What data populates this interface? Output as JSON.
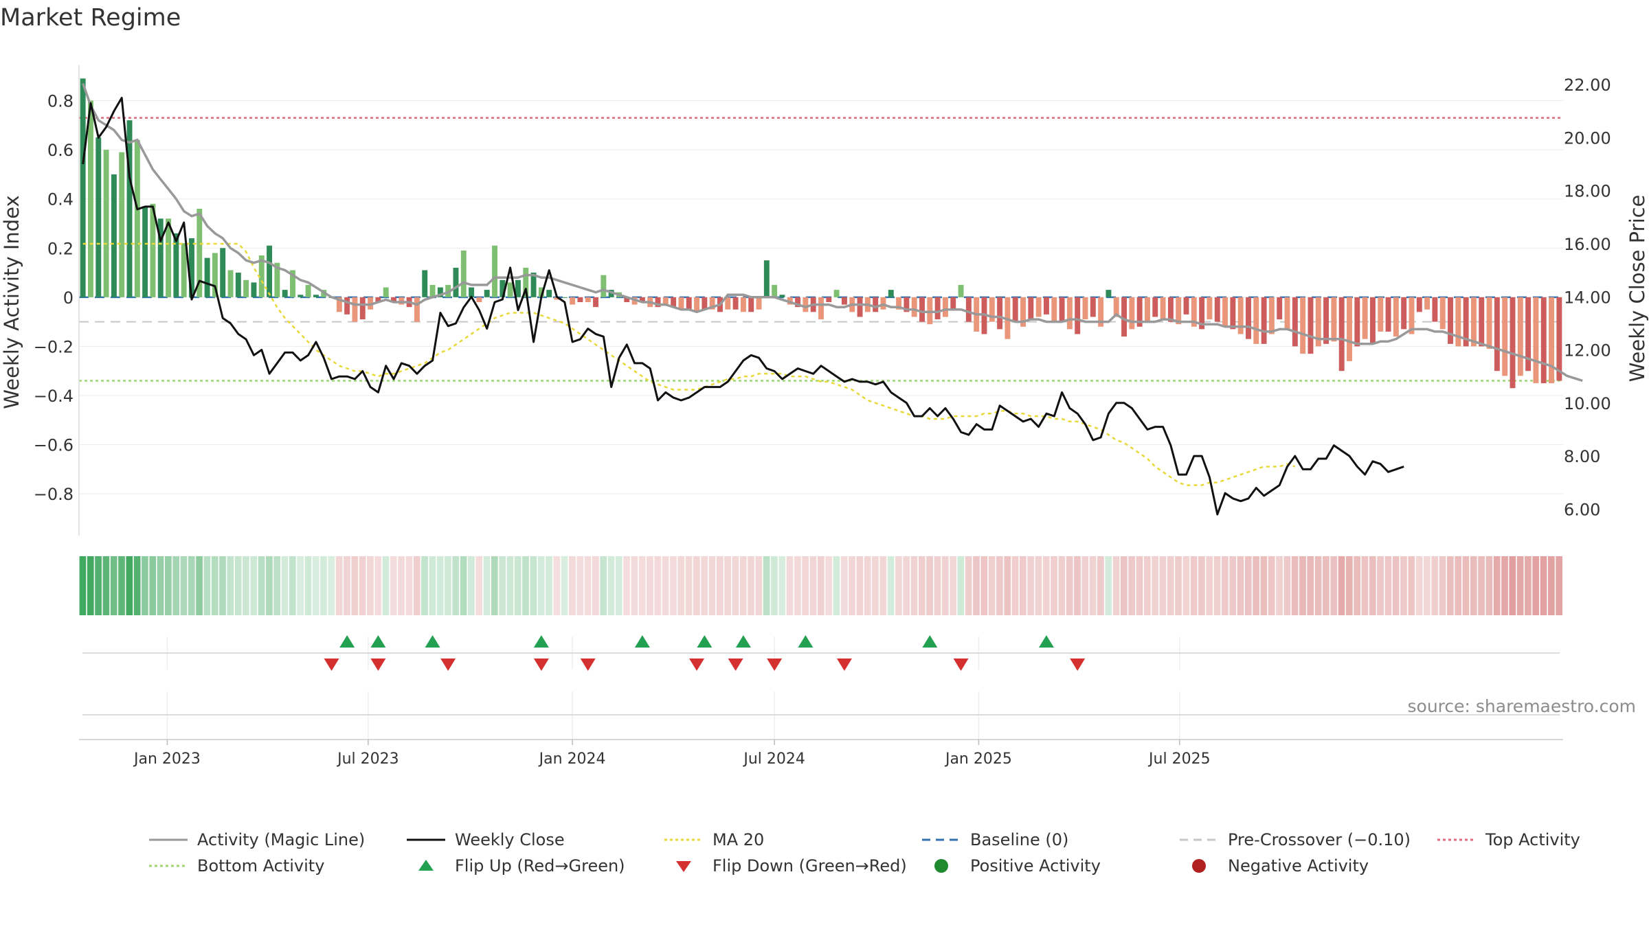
{
  "title": "Market Regime",
  "source": "source: sharemaestro.com",
  "legend": [
    {
      "label": "Activity (Magic Line)",
      "kind": "line",
      "color": "#999999",
      "dash": ""
    },
    {
      "label": "Weekly Close",
      "kind": "line",
      "color": "#111111",
      "dash": ""
    },
    {
      "label": "MA 20",
      "kind": "line",
      "color": "#e8d838",
      "dash": "4,4"
    },
    {
      "label": "Baseline (0)",
      "kind": "line",
      "color": "#2f72b0",
      "dash": "12,8"
    },
    {
      "label": "Pre-Crossover (−0.10)",
      "kind": "line",
      "color": "#c7c7c7",
      "dash": "12,8"
    },
    {
      "label": "Top Activity",
      "kind": "line",
      "color": "#e06a7a",
      "dash": "4,4"
    },
    {
      "label": "Bottom Activity",
      "kind": "line",
      "color": "#9ed86a",
      "dash": "4,4"
    },
    {
      "label": "Flip Up (Red→Green)",
      "kind": "tri-up",
      "color": "#23a052",
      "dash": ""
    },
    {
      "label": "Flip Down (Green→Red)",
      "kind": "tri-down",
      "color": "#d43030",
      "dash": ""
    },
    {
      "label": "Positive Activity",
      "kind": "dot",
      "color": "#208a30",
      "dash": ""
    },
    {
      "label": "Negative Activity",
      "kind": "dot",
      "color": "#b02020",
      "dash": ""
    }
  ],
  "chart_data": {
    "type": "bar",
    "x_start": "2022-10-17",
    "x_step_days": 7,
    "x_ticks": [
      "Jan 2023",
      "Jul 2023",
      "Jan 2024",
      "Jul 2024",
      "Jan 2025",
      "Jul 2025"
    ],
    "x_tick_dates": [
      "2023-01-01",
      "2023-07-01",
      "2024-01-01",
      "2024-07-01",
      "2025-01-01",
      "2025-07-01"
    ],
    "ylabel": "Weekly Activity Index",
    "ylabel_right": "Weekly Close Price",
    "ylim": [
      -0.97,
      0.93
    ],
    "ylim_right": [
      5.0,
      22.6
    ],
    "yticks": [
      "0.8",
      "0.6",
      "0.4",
      "0.2",
      "0",
      "−0.2",
      "−0.4",
      "−0.6",
      "−0.8"
    ],
    "ytick_values": [
      0.8,
      0.6,
      0.4,
      0.2,
      0,
      -0.2,
      -0.4,
      -0.6,
      -0.8
    ],
    "yticks_right": [
      "22.00",
      "20.00",
      "18.00",
      "16.00",
      "14.00",
      "12.00",
      "10.00",
      "8.00",
      "6.00"
    ],
    "ytick_values_right": [
      22,
      20,
      18,
      16,
      14,
      12,
      10,
      8,
      6
    ],
    "grid": true,
    "reference_lines": {
      "baseline": 0,
      "pre_crossover": -0.1,
      "top_activity": 0.73,
      "bottom_activity": -0.34
    },
    "activity_bars": [
      0.89,
      0.8,
      0.65,
      0.6,
      0.5,
      0.59,
      0.72,
      0.64,
      0.37,
      0.38,
      0.32,
      0.32,
      0.26,
      0.22,
      0.24,
      0.36,
      0.16,
      0.18,
      0.2,
      0.11,
      0.1,
      0.07,
      0.06,
      0.17,
      0.21,
      0.14,
      0.03,
      0.11,
      0.01,
      0.05,
      0.01,
      0.03,
      0.0,
      -0.06,
      -0.07,
      -0.1,
      -0.09,
      -0.05,
      -0.02,
      0.04,
      -0.02,
      -0.03,
      -0.04,
      -0.1,
      0.11,
      0.05,
      0.04,
      0.05,
      0.12,
      0.19,
      0.04,
      -0.02,
      0.03,
      0.21,
      0.07,
      0.06,
      0.07,
      0.12,
      0.1,
      0.04,
      0.03,
      -0.01,
      0.0,
      -0.03,
      -0.02,
      -0.02,
      -0.04,
      0.09,
      0.03,
      0.02,
      -0.02,
      -0.03,
      -0.02,
      -0.04,
      -0.04,
      -0.03,
      -0.04,
      -0.05,
      -0.05,
      -0.06,
      -0.05,
      -0.05,
      -0.06,
      -0.05,
      -0.05,
      -0.06,
      -0.06,
      -0.05,
      0.15,
      0.05,
      0.01,
      -0.03,
      -0.04,
      -0.06,
      -0.06,
      -0.09,
      -0.02,
      0.03,
      -0.03,
      -0.06,
      -0.08,
      -0.06,
      -0.06,
      -0.05,
      0.03,
      -0.05,
      -0.06,
      -0.08,
      -0.1,
      -0.11,
      -0.09,
      -0.08,
      -0.05,
      0.05,
      -0.1,
      -0.14,
      -0.15,
      -0.1,
      -0.13,
      -0.17,
      -0.1,
      -0.12,
      -0.09,
      -0.08,
      -0.07,
      -0.1,
      -0.1,
      -0.13,
      -0.15,
      -0.09,
      -0.08,
      -0.12,
      0.03,
      -0.08,
      -0.16,
      -0.13,
      -0.12,
      -0.1,
      -0.08,
      -0.09,
      -0.1,
      -0.11,
      -0.07,
      -0.12,
      -0.13,
      -0.09,
      -0.1,
      -0.12,
      -0.13,
      -0.15,
      -0.17,
      -0.19,
      -0.19,
      -0.15,
      -0.09,
      -0.13,
      -0.2,
      -0.23,
      -0.23,
      -0.2,
      -0.19,
      -0.18,
      -0.3,
      -0.26,
      -0.2,
      -0.17,
      -0.19,
      -0.14,
      -0.14,
      -0.16,
      -0.13,
      -0.15,
      -0.06,
      -0.05,
      -0.1,
      -0.13,
      -0.19,
      -0.2,
      -0.2,
      -0.2,
      -0.2,
      -0.21,
      -0.3,
      -0.32,
      -0.37,
      -0.32,
      -0.3,
      -0.35,
      -0.35,
      -0.35,
      -0.34
    ],
    "magic_line": [
      0.87,
      0.78,
      0.72,
      0.7,
      0.68,
      0.64,
      0.63,
      0.64,
      0.58,
      0.52,
      0.48,
      0.44,
      0.4,
      0.35,
      0.33,
      0.34,
      0.29,
      0.26,
      0.24,
      0.2,
      0.18,
      0.15,
      0.14,
      0.15,
      0.14,
      0.12,
      0.11,
      0.09,
      0.07,
      0.06,
      0.04,
      0.02,
      0.0,
      -0.01,
      -0.02,
      -0.03,
      -0.03,
      -0.03,
      -0.02,
      -0.01,
      -0.02,
      -0.02,
      -0.02,
      -0.03,
      -0.01,
      0.0,
      0.01,
      0.02,
      0.04,
      0.06,
      0.05,
      0.05,
      0.05,
      0.08,
      0.08,
      0.08,
      0.08,
      0.09,
      0.09,
      0.08,
      0.08,
      0.07,
      0.06,
      0.05,
      0.04,
      0.03,
      0.02,
      0.03,
      0.02,
      0.01,
      0.0,
      -0.01,
      -0.02,
      -0.02,
      -0.03,
      -0.03,
      -0.04,
      -0.05,
      -0.05,
      -0.06,
      -0.05,
      -0.04,
      -0.03,
      0.01,
      0.01,
      0.01,
      0.0,
      0.0,
      0.0,
      0.0,
      -0.01,
      -0.02,
      -0.03,
      -0.04,
      -0.03,
      -0.03,
      -0.03,
      -0.04,
      -0.04,
      -0.03,
      -0.03,
      -0.03,
      -0.04,
      -0.03,
      -0.04,
      -0.04,
      -0.05,
      -0.05,
      -0.06,
      -0.06,
      -0.06,
      -0.05,
      -0.05,
      -0.05,
      -0.06,
      -0.07,
      -0.07,
      -0.08,
      -0.08,
      -0.09,
      -0.1,
      -0.1,
      -0.09,
      -0.09,
      -0.1,
      -0.1,
      -0.1,
      -0.09,
      -0.09,
      -0.1,
      -0.1,
      -0.1,
      -0.1,
      -0.07,
      -0.09,
      -0.1,
      -0.1,
      -0.1,
      -0.1,
      -0.09,
      -0.09,
      -0.1,
      -0.1,
      -0.1,
      -0.11,
      -0.11,
      -0.11,
      -0.12,
      -0.12,
      -0.12,
      -0.12,
      -0.13,
      -0.14,
      -0.14,
      -0.13,
      -0.13,
      -0.14,
      -0.15,
      -0.16,
      -0.17,
      -0.17,
      -0.17,
      -0.17,
      -0.18,
      -0.19,
      -0.19,
      -0.19,
      -0.18,
      -0.18,
      -0.17,
      -0.15,
      -0.13,
      -0.13,
      -0.13,
      -0.14,
      -0.14,
      -0.15,
      -0.16,
      -0.17,
      -0.18,
      -0.19,
      -0.2,
      -0.21,
      -0.22,
      -0.23,
      -0.24,
      -0.25,
      -0.26,
      -0.27,
      -0.28,
      -0.3,
      -0.32,
      -0.33,
      -0.34
    ],
    "weekly_close": [
      19.0,
      21.3,
      20.0,
      20.4,
      21.0,
      21.5,
      18.5,
      17.3,
      17.4,
      17.4,
      16.1,
      16.8,
      16.1,
      16.8,
      13.9,
      14.6,
      14.5,
      14.4,
      13.2,
      13.0,
      12.6,
      12.4,
      11.8,
      12.0,
      11.1,
      11.5,
      11.9,
      11.9,
      11.6,
      11.8,
      12.3,
      11.7,
      10.9,
      11.0,
      11.0,
      10.9,
      11.2,
      10.6,
      10.4,
      11.4,
      10.9,
      11.5,
      11.4,
      11.1,
      11.4,
      11.6,
      13.4,
      12.9,
      13.0,
      13.6,
      14.0,
      13.5,
      12.8,
      13.8,
      13.9,
      15.1,
      13.5,
      14.3,
      12.3,
      14.0,
      15.0,
      14.0,
      13.8,
      12.3,
      12.4,
      12.8,
      12.6,
      12.5,
      10.6,
      11.7,
      12.2,
      11.5,
      11.5,
      11.3,
      10.1,
      10.4,
      10.2,
      10.1,
      10.2,
      10.4,
      10.6,
      10.6,
      10.6,
      10.8,
      11.2,
      11.6,
      11.8,
      11.7,
      11.3,
      11.2,
      10.9,
      11.1,
      11.3,
      11.2,
      11.1,
      11.4,
      11.2,
      11.0,
      10.8,
      10.9,
      10.8,
      10.8,
      10.7,
      10.8,
      10.4,
      10.2,
      10.0,
      9.5,
      9.5,
      9.8,
      9.5,
      9.8,
      9.4,
      8.9,
      8.8,
      9.2,
      9.0,
      9.0,
      9.9,
      9.7,
      9.5,
      9.3,
      9.4,
      9.1,
      9.6,
      9.5,
      10.4,
      9.8,
      9.6,
      9.2,
      8.6,
      8.7,
      9.6,
      10.0,
      10.0,
      9.8,
      9.4,
      9.0,
      9.1,
      9.1,
      8.4,
      7.3,
      7.3,
      8.0,
      8.0,
      7.2,
      5.8,
      6.6,
      6.4,
      6.3,
      6.4,
      6.8,
      6.5,
      6.7,
      6.9,
      7.6,
      8.0,
      7.5,
      7.5,
      7.9,
      7.9,
      8.4,
      8.2,
      8.0,
      7.6,
      7.3,
      7.8,
      7.7,
      7.4,
      7.5,
      7.6
    ],
    "ma20": [
      16.0,
      16.0,
      16.0,
      16.0,
      16.0,
      16.0,
      16.0,
      16.0,
      16.0,
      16.0,
      16.0,
      16.0,
      16.0,
      16.0,
      16.0,
      16.0,
      16.0,
      16.0,
      16.0,
      16.0,
      16.0,
      15.7,
      15.1,
      14.6,
      14.1,
      13.6,
      13.2,
      12.9,
      12.6,
      12.3,
      12.0,
      11.8,
      11.6,
      11.4,
      11.3,
      11.2,
      11.2,
      11.1,
      11.0,
      11.1,
      11.1,
      11.2,
      11.3,
      11.4,
      11.5,
      11.7,
      11.9,
      12.0,
      12.2,
      12.4,
      12.6,
      12.8,
      13.0,
      13.2,
      13.3,
      13.4,
      13.4,
      13.4,
      13.4,
      13.3,
      13.2,
      13.1,
      13.0,
      12.8,
      12.6,
      12.4,
      12.2,
      12.0,
      11.8,
      11.6,
      11.4,
      11.2,
      11.0,
      10.8,
      10.7,
      10.6,
      10.5,
      10.5,
      10.5,
      10.5,
      10.6,
      10.7,
      10.8,
      10.9,
      10.9,
      11.0,
      11.0,
      11.1,
      11.1,
      11.1,
      11.1,
      11.0,
      11.0,
      11.0,
      10.9,
      10.8,
      10.8,
      10.7,
      10.6,
      10.5,
      10.3,
      10.1,
      10.0,
      9.9,
      9.8,
      9.7,
      9.6,
      9.5,
      9.5,
      9.4,
      9.4,
      9.4,
      9.5,
      9.5,
      9.5,
      9.5,
      9.6,
      9.6,
      9.7,
      9.7,
      9.6,
      9.6,
      9.5,
      9.5,
      9.5,
      9.4,
      9.4,
      9.3,
      9.3,
      9.2,
      9.1,
      9.0,
      8.8,
      8.6,
      8.5,
      8.3,
      8.1,
      7.9,
      7.6,
      7.4,
      7.2,
      7.0,
      6.9,
      6.9,
      6.9,
      7.0,
      7.0,
      7.1,
      7.2,
      7.3,
      7.4,
      7.5,
      7.6,
      7.6,
      7.6,
      7.7,
      7.6
    ],
    "flip_up_indices": [
      34,
      38,
      45,
      59,
      72,
      80,
      85,
      93,
      109,
      124
    ],
    "flip_down_indices": [
      32,
      38,
      47,
      59,
      65,
      79,
      84,
      89,
      98,
      113,
      128
    ]
  }
}
